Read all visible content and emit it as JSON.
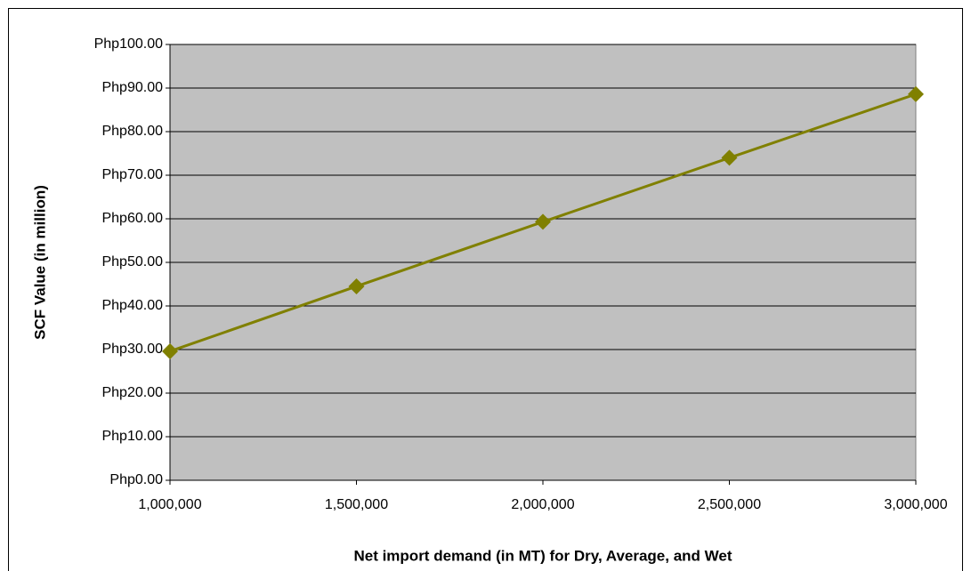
{
  "chart_data": {
    "type": "line",
    "x_label": "Net import demand (in MT) for Dry, Average, and Wet",
    "y_label": "SCF Value (in million)",
    "x": [
      1000000,
      1500000,
      2000000,
      2500000,
      3000000
    ],
    "values": [
      29.6,
      44.5,
      59.3,
      74.0,
      88.6
    ],
    "color": "#808000",
    "xlim": [
      1000000,
      3000000
    ],
    "xticks": [
      {
        "value": 1000000,
        "label": "1,000,000"
      },
      {
        "value": 1500000,
        "label": "1,500,000"
      },
      {
        "value": 2000000,
        "label": "2,000,000"
      },
      {
        "value": 2500000,
        "label": "2,500,000"
      },
      {
        "value": 3000000,
        "label": "3,000,000"
      }
    ],
    "ylim": [
      0,
      100
    ],
    "yticks": [
      {
        "value": 0,
        "label": "Php0.00"
      },
      {
        "value": 10,
        "label": "Php10.00"
      },
      {
        "value": 20,
        "label": "Php20.00"
      },
      {
        "value": 30,
        "label": "Php30.00"
      },
      {
        "value": 40,
        "label": "Php40.00"
      },
      {
        "value": 50,
        "label": "Php50.00"
      },
      {
        "value": 60,
        "label": "Php60.00"
      },
      {
        "value": 70,
        "label": "Php70.00"
      },
      {
        "value": 80,
        "label": "Php80.00"
      },
      {
        "value": 90,
        "label": "Php90.00"
      },
      {
        "value": 100,
        "label": "Php100.00"
      }
    ],
    "grid": true,
    "plot_background": "#c0c0c0"
  }
}
